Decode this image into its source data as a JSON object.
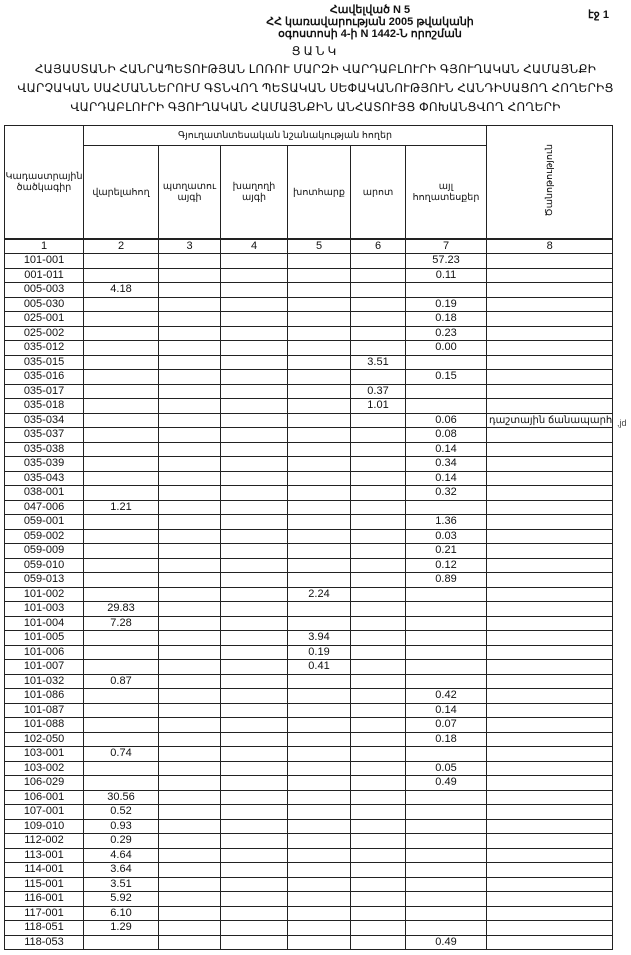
{
  "header": {
    "annex_lines": [
      "Հավելված N 5",
      "ՀՀ կառավարության 2005 թվականի",
      "օգոստոսի 4-ի N 1442-Ն որոշման"
    ],
    "page_label": "էջ 1",
    "list_title": "ՑԱՆԿ",
    "document_title": "ՀԱՅԱՍՏԱՆԻ ՀԱՆՐԱՊԵՏՈՒԹՅԱՆ ԼՈՌՈՒ ՄԱՐԶԻ ՎԱՐԴԱԲԼՈՒՐԻ ԳՅՈՒՂԱԿԱՆ ՀԱՄԱՅՆՔԻ ՎԱՐՉԱԿԱՆ ՍԱՀՄԱՆՆԵՐՈՒՄ ԳՏՆՎՈՂ ՊԵՏԱԿԱՆ ՍԵՓԱԿԱՆՈՒԹՅՈՒՆ ՀԱՆԴԻՍԱՑՈՂ ՀՈՂԵՐԻՑ ՎԱՐԴԱԲԼՈՒՐԻ ԳՅՈՒՂԱԿԱՆ ՀԱՄԱՅՆՔԻՆ ԱՆՀԱՏՈՒՅՑ ՓՈԽԱՆՑՎՈՂ ՀՈՂԵՐԻ"
  },
  "table": {
    "col_code": "Կադաստրային ծածկագիր",
    "group_header": "Գյուղատնտեսական նշանակության հողեր",
    "columns": [
      "վարելահող",
      "պտղատու այգի",
      "խաղողի այգի",
      "խոտհարք",
      "արոտ",
      "այլ հողատեսքեր"
    ],
    "col_note": "Ծանոթություն",
    "column_numbers": [
      "1",
      "2",
      "3",
      "4",
      "5",
      "6",
      "7",
      "8"
    ],
    "rows": [
      {
        "code": "101-001",
        "values": [
          "",
          "",
          "",
          "",
          "",
          "57.23",
          ""
        ]
      },
      {
        "code": "001-011",
        "values": [
          "",
          "",
          "",
          "",
          "",
          "0.11",
          ""
        ]
      },
      {
        "code": "005-003",
        "values": [
          "4.18",
          "",
          "",
          "",
          "",
          "",
          ""
        ]
      },
      {
        "code": "005-030",
        "values": [
          "",
          "",
          "",
          "",
          "",
          "0.19",
          ""
        ]
      },
      {
        "code": "025-001",
        "values": [
          "",
          "",
          "",
          "",
          "",
          "0.18",
          ""
        ]
      },
      {
        "code": "025-002",
        "values": [
          "",
          "",
          "",
          "",
          "",
          "0.23",
          ""
        ]
      },
      {
        "code": "035-012",
        "values": [
          "",
          "",
          "",
          "",
          "",
          "0.00",
          ""
        ]
      },
      {
        "code": "035-015",
        "values": [
          "",
          "",
          "",
          "",
          "3.51",
          "",
          ""
        ]
      },
      {
        "code": "035-016",
        "values": [
          "",
          "",
          "",
          "",
          "",
          "0.15",
          ""
        ]
      },
      {
        "code": "035-017",
        "values": [
          "",
          "",
          "",
          "",
          "0.37",
          "",
          ""
        ]
      },
      {
        "code": "035-018",
        "values": [
          "",
          "",
          "",
          "",
          "1.01",
          "",
          ""
        ]
      },
      {
        "code": "035-034",
        "values": [
          "",
          "",
          "",
          "",
          "",
          "0.06",
          "դաշտային ճանապարհ"
        ]
      },
      {
        "code": "035-037",
        "values": [
          "",
          "",
          "",
          "",
          "",
          "0.08",
          ""
        ]
      },
      {
        "code": "035-038",
        "values": [
          "",
          "",
          "",
          "",
          "",
          "0.14",
          ""
        ]
      },
      {
        "code": "035-039",
        "values": [
          "",
          "",
          "",
          "",
          "",
          "0.34",
          ""
        ]
      },
      {
        "code": "035-043",
        "values": [
          "",
          "",
          "",
          "",
          "",
          "0.14",
          ""
        ]
      },
      {
        "code": "038-001",
        "values": [
          "",
          "",
          "",
          "",
          "",
          "0.32",
          ""
        ]
      },
      {
        "code": "047-006",
        "values": [
          "1.21",
          "",
          "",
          "",
          "",
          "",
          ""
        ]
      },
      {
        "code": "059-001",
        "values": [
          "",
          "",
          "",
          "",
          "",
          "1.36",
          ""
        ]
      },
      {
        "code": "059-002",
        "values": [
          "",
          "",
          "",
          "",
          "",
          "0.03",
          ""
        ]
      },
      {
        "code": "059-009",
        "values": [
          "",
          "",
          "",
          "",
          "",
          "0.21",
          ""
        ]
      },
      {
        "code": "059-010",
        "values": [
          "",
          "",
          "",
          "",
          "",
          "0.12",
          ""
        ]
      },
      {
        "code": "059-013",
        "values": [
          "",
          "",
          "",
          "",
          "",
          "0.89",
          ""
        ]
      },
      {
        "code": "101-002",
        "values": [
          "",
          "",
          "",
          "2.24",
          "",
          "",
          ""
        ]
      },
      {
        "code": "101-003",
        "values": [
          "29.83",
          "",
          "",
          "",
          "",
          "",
          ""
        ]
      },
      {
        "code": "101-004",
        "values": [
          "7.28",
          "",
          "",
          "",
          "",
          "",
          ""
        ]
      },
      {
        "code": "101-005",
        "values": [
          "",
          "",
          "",
          "3.94",
          "",
          "",
          ""
        ]
      },
      {
        "code": "101-006",
        "values": [
          "",
          "",
          "",
          "0.19",
          "",
          "",
          ""
        ]
      },
      {
        "code": "101-007",
        "values": [
          "",
          "",
          "",
          "0.41",
          "",
          "",
          ""
        ]
      },
      {
        "code": "101-032",
        "values": [
          "0.87",
          "",
          "",
          "",
          "",
          "",
          ""
        ]
      },
      {
        "code": "101-086",
        "values": [
          "",
          "",
          "",
          "",
          "",
          "0.42",
          ""
        ]
      },
      {
        "code": "101-087",
        "values": [
          "",
          "",
          "",
          "",
          "",
          "0.14",
          ""
        ]
      },
      {
        "code": "101-088",
        "values": [
          "",
          "",
          "",
          "",
          "",
          "0.07",
          ""
        ]
      },
      {
        "code": "102-050",
        "values": [
          "",
          "",
          "",
          "",
          "",
          "0.18",
          ""
        ]
      },
      {
        "code": "103-001",
        "values": [
          "0.74",
          "",
          "",
          "",
          "",
          "",
          ""
        ]
      },
      {
        "code": "103-002",
        "values": [
          "",
          "",
          "",
          "",
          "",
          "0.05",
          ""
        ]
      },
      {
        "code": "106-029",
        "values": [
          "",
          "",
          "",
          "",
          "",
          "0.49",
          ""
        ]
      },
      {
        "code": "106-001",
        "values": [
          "30.56",
          "",
          "",
          "",
          "",
          "",
          ""
        ]
      },
      {
        "code": "107-001",
        "values": [
          "0.52",
          "",
          "",
          "",
          "",
          "",
          ""
        ]
      },
      {
        "code": "109-010",
        "values": [
          "0.93",
          "",
          "",
          "",
          "",
          "",
          ""
        ]
      },
      {
        "code": "112-002",
        "values": [
          "0.29",
          "",
          "",
          "",
          "",
          "",
          ""
        ]
      },
      {
        "code": "113-001",
        "values": [
          "4.64",
          "",
          "",
          "",
          "",
          "",
          ""
        ]
      },
      {
        "code": "114-001",
        "values": [
          "3.64",
          "",
          "",
          "",
          "",
          "",
          ""
        ]
      },
      {
        "code": "115-001",
        "values": [
          "3.51",
          "",
          "",
          "",
          "",
          "",
          ""
        ]
      },
      {
        "code": "116-001",
        "values": [
          "5.92",
          "",
          "",
          "",
          "",
          "",
          ""
        ]
      },
      {
        "code": "117-001",
        "values": [
          "6.10",
          "",
          "",
          "",
          "",
          "",
          ""
        ]
      },
      {
        "code": "118-051",
        "values": [
          "1.29",
          "",
          "",
          "",
          "",
          "",
          ""
        ]
      },
      {
        "code": "118-053",
        "values": [
          "",
          "",
          "",
          "",
          "",
          "0.49",
          ""
        ]
      }
    ]
  },
  "margin_mark": ",jd"
}
